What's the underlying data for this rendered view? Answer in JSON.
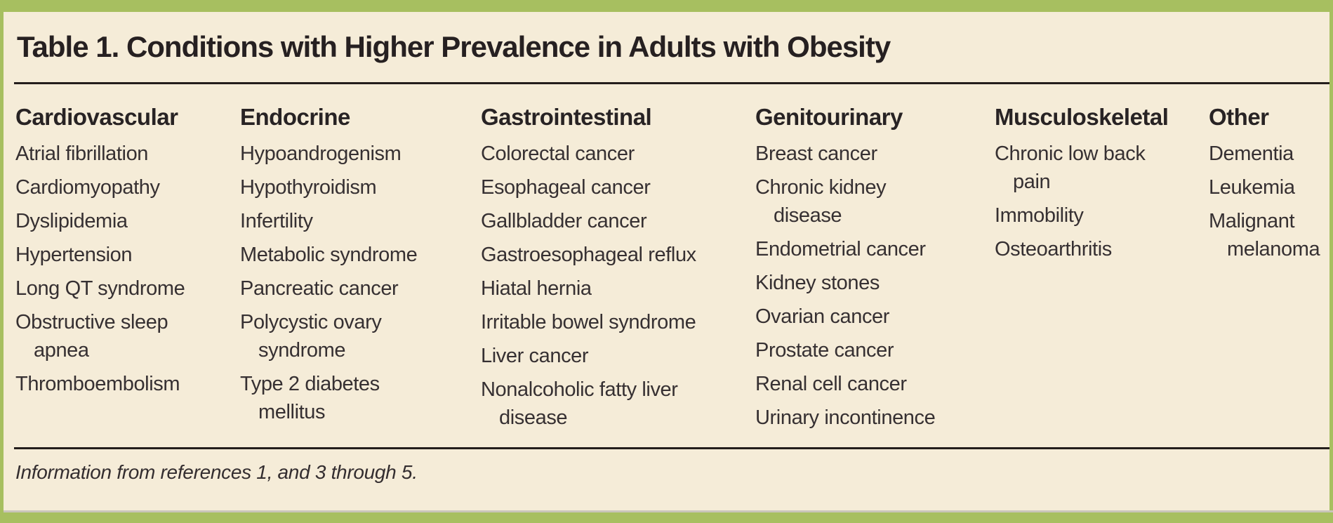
{
  "title": "Table 1. Conditions with Higher Prevalence in Adults with Obesity",
  "footnote": "Information from references 1, and 3 through 5.",
  "colors": {
    "frame_green": "#a7bf60",
    "paper_cream": "#f5ecd8",
    "rule_dark": "#241e1c",
    "title_text": "#262021",
    "body_text": "#363032"
  },
  "table": {
    "columns": [
      {
        "header": "Cardiovascular",
        "items": [
          "Atrial fibrillation",
          "Cardiomyopathy",
          "Dyslipidemia",
          "Hypertension",
          "Long QT syndrome",
          "Obstructive sleep\napnea",
          "Thromboembolism"
        ]
      },
      {
        "header": "Endocrine",
        "items": [
          "Hypoandrogenism",
          "Hypothyroidism",
          "Infertility",
          "Metabolic syndrome",
          "Pancreatic cancer",
          "Polycystic ovary\nsyndrome",
          "Type 2 diabetes\nmellitus"
        ]
      },
      {
        "header": "Gastrointestinal",
        "items": [
          "Colorectal cancer",
          "Esophageal cancer",
          "Gallbladder cancer",
          "Gastroesophageal reflux",
          "Hiatal hernia",
          "Irritable bowel syndrome",
          "Liver cancer",
          "Nonalcoholic fatty liver\ndisease"
        ]
      },
      {
        "header": "Genitourinary",
        "items": [
          "Breast cancer",
          "Chronic kidney\ndisease",
          "Endometrial cancer",
          "Kidney stones",
          "Ovarian cancer",
          "Prostate cancer",
          "Renal cell cancer",
          "Urinary incontinence"
        ]
      },
      {
        "header": "Musculoskeletal",
        "items": [
          "Chronic low back\npain",
          "Immobility",
          "Osteoarthritis"
        ]
      },
      {
        "header": "Other",
        "items": [
          "Dementia",
          "Leukemia",
          "Malignant\nmelanoma"
        ]
      }
    ]
  }
}
